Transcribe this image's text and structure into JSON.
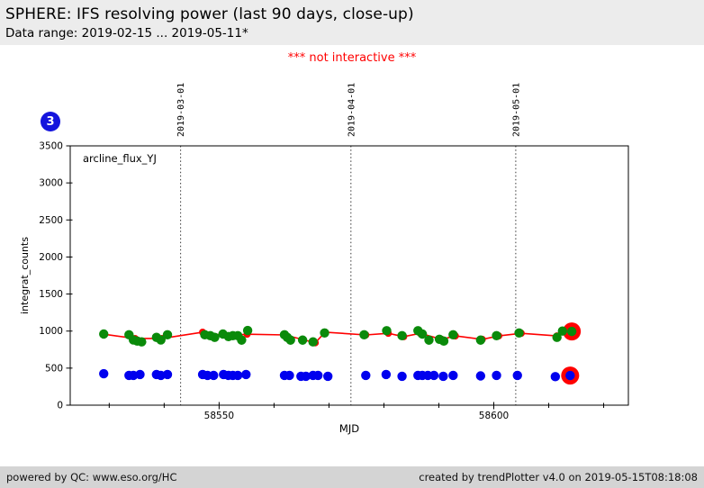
{
  "header": {
    "title": "SPHERE: IFS resolving power (last 90 days, close-up)",
    "subtitle": "Data range: 2019-02-15 ... 2019-05-11*"
  },
  "warning_text": "*** not interactive ***",
  "plot_badge": {
    "count": "3",
    "color": "#1414dd"
  },
  "footer": {
    "left": "powered by QC: www.eso.org/HC",
    "right": "created by trendPlotter v4.0 on 2019-05-15T08:18:08"
  },
  "chart_data": {
    "type": "scatter",
    "title": "arcline_flux_YJ",
    "xlabel": "MJD",
    "ylabel": "integrat_counts",
    "xlim": [
      58522.9,
      58624.5
    ],
    "ylim": [
      0,
      3500
    ],
    "grid": "off",
    "legend": "none",
    "y_ticks": [
      0,
      500,
      1000,
      1500,
      2000,
      2500,
      3000,
      3500
    ],
    "x_major_ticks": [
      58550,
      58600
    ],
    "x_minor_ticks": [
      58530,
      58540,
      58560,
      58570,
      58580,
      58590,
      58610,
      58620
    ],
    "date_lines": [
      {
        "mjd": 58543,
        "label": "2019-03-01"
      },
      {
        "mjd": 58574,
        "label": "2019-04-01"
      },
      {
        "mjd": 58604,
        "label": "2019-05-01"
      }
    ],
    "series": [
      {
        "name": "trend_line",
        "type": "line",
        "color": "#ff0000",
        "points": [
          [
            58529.0,
            958
          ],
          [
            58534.7,
            900
          ],
          [
            58539.6,
            900
          ],
          [
            58547.0,
            985
          ],
          [
            58551.4,
            935
          ],
          [
            58555.1,
            958
          ],
          [
            58562.0,
            948
          ],
          [
            58567.5,
            842
          ],
          [
            58569.3,
            985
          ],
          [
            58576.7,
            948
          ],
          [
            58580.8,
            970
          ],
          [
            58583.6,
            925
          ],
          [
            58586.6,
            970
          ],
          [
            58590.5,
            888
          ],
          [
            58593.0,
            935
          ],
          [
            58597.9,
            888
          ],
          [
            58600.9,
            935
          ],
          [
            58605.0,
            970
          ],
          [
            58611.5,
            935
          ],
          [
            58614.2,
            995
          ]
        ]
      },
      {
        "name": "latest_highlight",
        "type": "ring",
        "color": "#ff0000",
        "points": [
          [
            58614.2,
            995
          ],
          [
            58613.9,
            400
          ]
        ]
      },
      {
        "name": "arcline_flux_YJ_points",
        "type": "scatter",
        "color": "#0a8a0a",
        "points": [
          [
            58529.0,
            960
          ],
          [
            58533.6,
            950
          ],
          [
            58534.4,
            880
          ],
          [
            58535.1,
            865
          ],
          [
            58535.9,
            855
          ],
          [
            58538.6,
            915
          ],
          [
            58539.4,
            880
          ],
          [
            58540.6,
            950
          ],
          [
            58547.4,
            950
          ],
          [
            58548.4,
            938
          ],
          [
            58549.2,
            915
          ],
          [
            58550.7,
            960
          ],
          [
            58551.7,
            926
          ],
          [
            58552.5,
            938
          ],
          [
            58553.4,
            938
          ],
          [
            58554.1,
            878
          ],
          [
            58555.2,
            1008
          ],
          [
            58561.9,
            950
          ],
          [
            58562.4,
            915
          ],
          [
            58563.0,
            878
          ],
          [
            58565.2,
            878
          ],
          [
            58567.1,
            854
          ],
          [
            58569.2,
            975
          ],
          [
            58576.4,
            950
          ],
          [
            58580.5,
            1005
          ],
          [
            58583.3,
            938
          ],
          [
            58586.2,
            1005
          ],
          [
            58587.0,
            960
          ],
          [
            58588.2,
            878
          ],
          [
            58590.1,
            890
          ],
          [
            58590.9,
            865
          ],
          [
            58592.6,
            950
          ],
          [
            58597.6,
            878
          ],
          [
            58600.5,
            938
          ],
          [
            58604.6,
            975
          ],
          [
            58611.5,
            915
          ],
          [
            58612.5,
            1000
          ],
          [
            58614.2,
            995
          ]
        ]
      },
      {
        "name": "secondary_points",
        "type": "scatter",
        "color": "#0000ee",
        "points": [
          [
            58529.0,
            425
          ],
          [
            58533.6,
            402
          ],
          [
            58534.4,
            402
          ],
          [
            58535.6,
            414
          ],
          [
            58538.6,
            414
          ],
          [
            58539.4,
            402
          ],
          [
            58540.6,
            414
          ],
          [
            58547.0,
            414
          ],
          [
            58547.9,
            402
          ],
          [
            58549.0,
            402
          ],
          [
            58550.8,
            414
          ],
          [
            58551.7,
            402
          ],
          [
            58552.5,
            402
          ],
          [
            58553.4,
            402
          ],
          [
            58554.9,
            414
          ],
          [
            58561.9,
            402
          ],
          [
            58562.8,
            402
          ],
          [
            58564.9,
            390
          ],
          [
            58565.8,
            390
          ],
          [
            58567.1,
            402
          ],
          [
            58568.0,
            402
          ],
          [
            58569.8,
            390
          ],
          [
            58576.7,
            402
          ],
          [
            58580.4,
            414
          ],
          [
            58583.3,
            390
          ],
          [
            58586.2,
            402
          ],
          [
            58587.0,
            402
          ],
          [
            58588.0,
            402
          ],
          [
            58589.1,
            402
          ],
          [
            58590.8,
            390
          ],
          [
            58592.6,
            402
          ],
          [
            58597.6,
            395
          ],
          [
            58600.5,
            402
          ],
          [
            58604.3,
            402
          ],
          [
            58611.2,
            385
          ],
          [
            58613.9,
            400
          ]
        ]
      }
    ]
  }
}
